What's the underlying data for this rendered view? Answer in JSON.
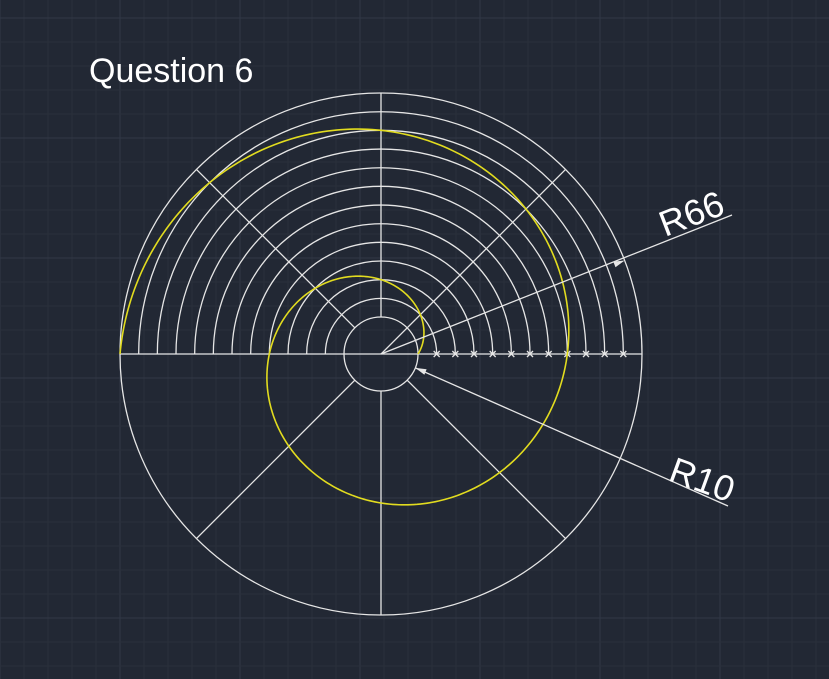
{
  "title": "Question 6",
  "dimensions": {
    "outer": "R66",
    "inner": "R10"
  },
  "colors": {
    "background": "#222834",
    "grid_minor": "#2a303b",
    "grid_major": "#313846",
    "construction": "#e6e6e6",
    "spiral": "#e2dc1f",
    "text": "#ffffff"
  }
}
